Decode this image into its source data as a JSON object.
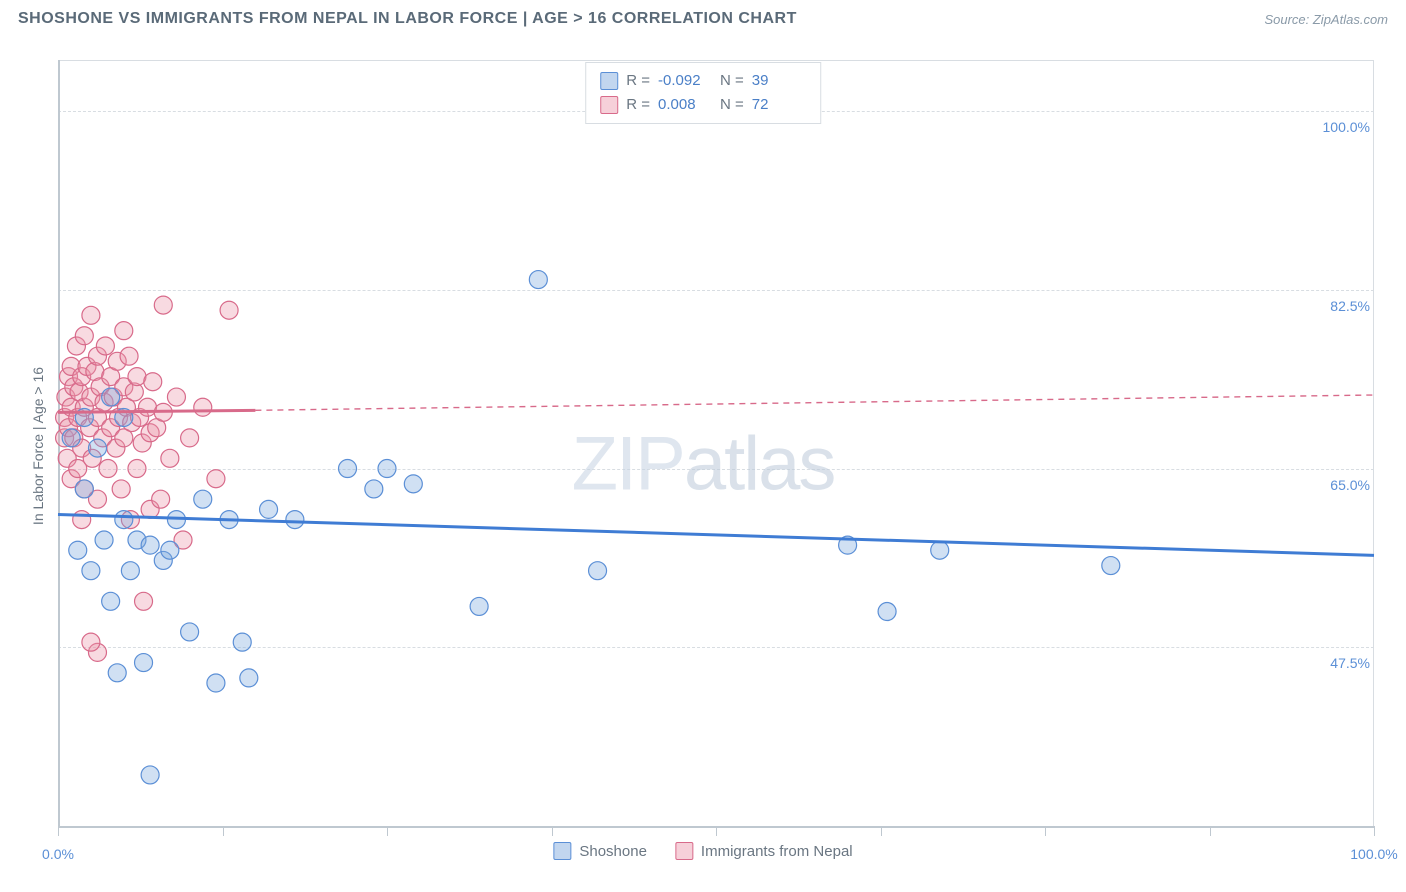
{
  "header": {
    "title": "SHOSHONE VS IMMIGRANTS FROM NEPAL IN LABOR FORCE | AGE > 16 CORRELATION CHART",
    "source": "Source: ZipAtlas.com"
  },
  "watermark": {
    "part1": "ZIP",
    "part2": "atlas"
  },
  "chart": {
    "type": "scatter",
    "y_axis_title": "In Labor Force | Age > 16",
    "background_color": "#ffffff",
    "grid_color": "#d8dde2",
    "axis_color": "#bfc8d0",
    "label_color": "#5b8fd6",
    "xlim": [
      0,
      100
    ],
    "ylim": [
      30,
      105
    ],
    "x_ticks": [
      0,
      12.5,
      25,
      37.5,
      50,
      62.5,
      75,
      87.5,
      100
    ],
    "x_tick_labels": {
      "0": "0.0%",
      "100": "100.0%"
    },
    "y_gridlines": [
      47.5,
      65.0,
      82.5,
      100.0
    ],
    "y_tick_labels": [
      "47.5%",
      "65.0%",
      "82.5%",
      "100.0%"
    ],
    "marker_radius": 9,
    "series": [
      {
        "name": "Shoshone",
        "color_fill": "rgba(120,165,220,0.35)",
        "color_stroke": "#5b8fd6",
        "R": "-0.092",
        "N": "39",
        "trend": {
          "x1": 0,
          "y1": 60.5,
          "x2": 100,
          "y2": 56.5,
          "color": "#3f7cd4",
          "width": 3,
          "dash": "none"
        },
        "points": [
          [
            1.0,
            68.0
          ],
          [
            1.5,
            57.0
          ],
          [
            2.0,
            70.0
          ],
          [
            2.0,
            63.0
          ],
          [
            2.5,
            55.0
          ],
          [
            3.0,
            67.0
          ],
          [
            3.5,
            58.0
          ],
          [
            4.0,
            72.0
          ],
          [
            4.0,
            52.0
          ],
          [
            4.5,
            45.0
          ],
          [
            5.0,
            70.0
          ],
          [
            5.0,
            60.0
          ],
          [
            5.5,
            55.0
          ],
          [
            6.0,
            58.0
          ],
          [
            6.5,
            46.0
          ],
          [
            7.0,
            57.5
          ],
          [
            7.0,
            35.0
          ],
          [
            8.0,
            56.0
          ],
          [
            8.5,
            57.0
          ],
          [
            9.0,
            60.0
          ],
          [
            10.0,
            49.0
          ],
          [
            11.0,
            62.0
          ],
          [
            12.0,
            44.0
          ],
          [
            13.0,
            60.0
          ],
          [
            14.0,
            48.0
          ],
          [
            14.5,
            44.5
          ],
          [
            16.0,
            61.0
          ],
          [
            18.0,
            60.0
          ],
          [
            22.0,
            65.0
          ],
          [
            24.0,
            63.0
          ],
          [
            25.0,
            65.0
          ],
          [
            27.0,
            63.5
          ],
          [
            32.0,
            51.5
          ],
          [
            36.5,
            83.5
          ],
          [
            41.0,
            55.0
          ],
          [
            60.0,
            57.5
          ],
          [
            63.0,
            51.0
          ],
          [
            67.0,
            57.0
          ],
          [
            80.0,
            55.5
          ]
        ]
      },
      {
        "name": "Immigrants from Nepal",
        "color_fill": "rgba(235,150,170,0.35)",
        "color_stroke": "#d86a8a",
        "R": "0.008",
        "N": "72",
        "trend_solid": {
          "x1": 0,
          "y1": 70.5,
          "x2": 15,
          "y2": 70.7,
          "color": "#d86a8a",
          "width": 3
        },
        "trend_dash": {
          "x1": 15,
          "y1": 70.7,
          "x2": 100,
          "y2": 72.2,
          "color": "#d86a8a",
          "width": 1.4
        },
        "points": [
          [
            0.5,
            70.0
          ],
          [
            0.5,
            68.0
          ],
          [
            0.6,
            72.0
          ],
          [
            0.7,
            66.0
          ],
          [
            0.8,
            74.0
          ],
          [
            0.8,
            69.0
          ],
          [
            1.0,
            71.0
          ],
          [
            1.0,
            75.0
          ],
          [
            1.0,
            64.0
          ],
          [
            1.2,
            73.0
          ],
          [
            1.2,
            68.0
          ],
          [
            1.4,
            77.0
          ],
          [
            1.5,
            70.0
          ],
          [
            1.5,
            65.0
          ],
          [
            1.6,
            72.5
          ],
          [
            1.8,
            74.0
          ],
          [
            1.8,
            67.0
          ],
          [
            2.0,
            78.0
          ],
          [
            2.0,
            71.0
          ],
          [
            2.0,
            63.0
          ],
          [
            2.2,
            75.0
          ],
          [
            2.4,
            69.0
          ],
          [
            2.5,
            80.0
          ],
          [
            2.5,
            72.0
          ],
          [
            2.6,
            66.0
          ],
          [
            2.8,
            74.5
          ],
          [
            3.0,
            76.0
          ],
          [
            3.0,
            70.0
          ],
          [
            3.0,
            62.0
          ],
          [
            3.2,
            73.0
          ],
          [
            3.4,
            68.0
          ],
          [
            3.5,
            71.5
          ],
          [
            3.6,
            77.0
          ],
          [
            3.8,
            65.0
          ],
          [
            4.0,
            74.0
          ],
          [
            4.0,
            69.0
          ],
          [
            4.2,
            72.0
          ],
          [
            4.4,
            67.0
          ],
          [
            4.5,
            75.5
          ],
          [
            4.6,
            70.0
          ],
          [
            4.8,
            63.0
          ],
          [
            5.0,
            73.0
          ],
          [
            5.0,
            68.0
          ],
          [
            5.2,
            71.0
          ],
          [
            5.4,
            76.0
          ],
          [
            5.5,
            60.0
          ],
          [
            5.6,
            69.5
          ],
          [
            5.8,
            72.5
          ],
          [
            6.0,
            74.0
          ],
          [
            6.0,
            65.0
          ],
          [
            6.2,
            70.0
          ],
          [
            6.4,
            67.5
          ],
          [
            6.5,
            52.0
          ],
          [
            6.8,
            71.0
          ],
          [
            7.0,
            68.5
          ],
          [
            7.0,
            61.0
          ],
          [
            7.2,
            73.5
          ],
          [
            7.5,
            69.0
          ],
          [
            7.8,
            62.0
          ],
          [
            8.0,
            81.0
          ],
          [
            8.0,
            70.5
          ],
          [
            8.5,
            66.0
          ],
          [
            9.0,
            72.0
          ],
          [
            9.5,
            58.0
          ],
          [
            10.0,
            68.0
          ],
          [
            11.0,
            71.0
          ],
          [
            12.0,
            64.0
          ],
          [
            13.0,
            80.5
          ],
          [
            3.0,
            47.0
          ],
          [
            2.5,
            48.0
          ],
          [
            5.0,
            78.5
          ],
          [
            1.8,
            60.0
          ]
        ]
      }
    ]
  },
  "legend_top": {
    "r_label": "R =",
    "n_label": "N ="
  },
  "legend_bottom": {
    "items": [
      "Shoshone",
      "Immigrants from Nepal"
    ]
  }
}
